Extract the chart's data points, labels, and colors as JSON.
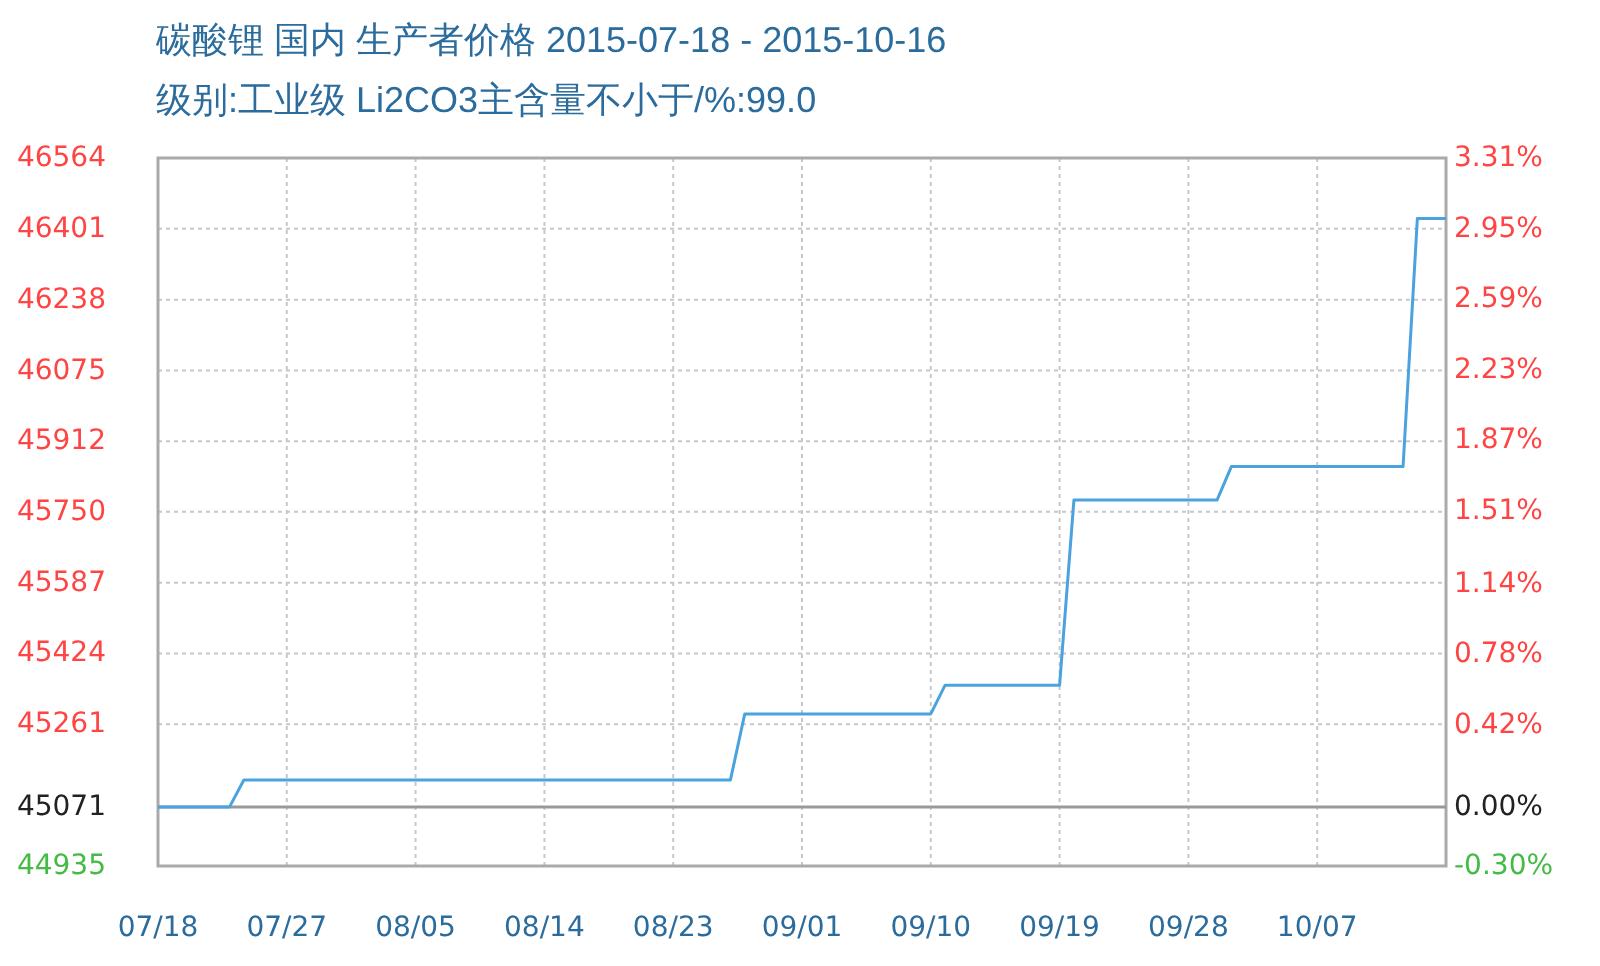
{
  "chart_data": {
    "type": "line",
    "title": "碳酸锂 国内 生产者价格 2015-07-18 - 2015-10-16",
    "subtitle": "级别:工业级 Li2CO3主含量不小于/%:99.0",
    "x": [
      "2015-07-18",
      "2015-07-23",
      "2015-07-24",
      "2015-08-27",
      "2015-08-28",
      "2015-09-10",
      "2015-09-11",
      "2015-09-19",
      "2015-09-20",
      "2015-09-30",
      "2015-10-01",
      "2015-10-13",
      "2015-10-14",
      "2015-10-16"
    ],
    "series": [
      {
        "color": "#4aa3df",
        "values": [
          45071,
          45071,
          45133,
          45133,
          45285,
          45285,
          45351,
          45351,
          45777,
          45777,
          45854,
          45854,
          46425,
          46425
        ]
      }
    ],
    "xlim": [
      "2015-07-18",
      "2015-10-16"
    ],
    "xticks": [
      {
        "value": "2015-07-18",
        "label": "07/18"
      },
      {
        "value": "2015-07-27",
        "label": "07/27"
      },
      {
        "value": "2015-08-05",
        "label": "08/05"
      },
      {
        "value": "2015-08-14",
        "label": "08/14"
      },
      {
        "value": "2015-08-23",
        "label": "08/23"
      },
      {
        "value": "2015-09-01",
        "label": "09/01"
      },
      {
        "value": "2015-09-10",
        "label": "09/10"
      },
      {
        "value": "2015-09-19",
        "label": "09/19"
      },
      {
        "value": "2015-09-28",
        "label": "09/28"
      },
      {
        "value": "2015-10-07",
        "label": "10/07"
      }
    ],
    "ylim": [
      44935,
      46564
    ],
    "yticks": [
      44935,
      45071,
      45261,
      45424,
      45587,
      45750,
      45912,
      46075,
      46238,
      46401,
      46564
    ],
    "y2lim": [
      -0.3,
      3.31
    ],
    "y2ticks": [
      {
        "value": -0.3,
        "label": "-0.30%"
      },
      {
        "value": 0.0,
        "label": "0.00%"
      },
      {
        "value": 0.42,
        "label": "0.42%"
      },
      {
        "value": 0.78,
        "label": "0.78%"
      },
      {
        "value": 1.14,
        "label": "1.14%"
      },
      {
        "value": 1.51,
        "label": "1.51%"
      },
      {
        "value": 1.87,
        "label": "1.87%"
      },
      {
        "value": 2.23,
        "label": "2.23%"
      },
      {
        "value": 2.59,
        "label": "2.59%"
      },
      {
        "value": 2.95,
        "label": "2.95%"
      },
      {
        "value": 3.31,
        "label": "3.31%"
      }
    ],
    "ref_lines": [
      {
        "axis": "y",
        "value": 45071,
        "color": "#999999"
      }
    ],
    "grid": true,
    "marker": "none",
    "line_style": "solid"
  }
}
